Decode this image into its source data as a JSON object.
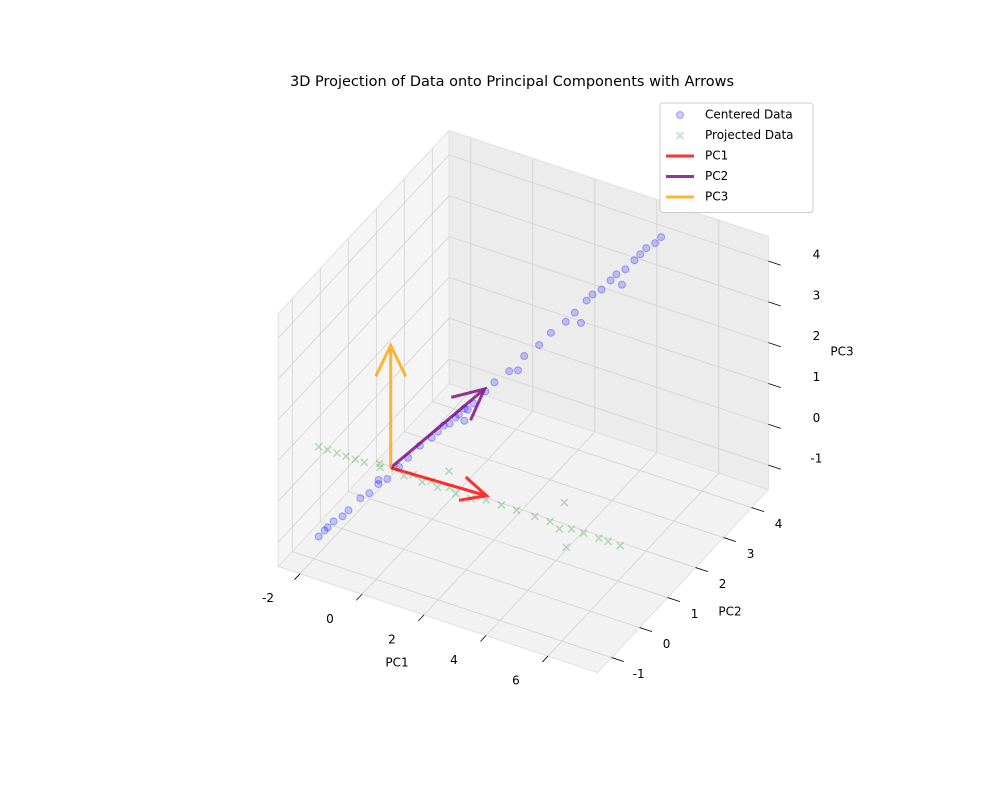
{
  "chart_data": {
    "type": "scatter3d",
    "title": "3D Projection of Data onto Principal Components with Arrows",
    "xlabel": "PC1",
    "ylabel": "PC2",
    "zlabel": "PC3",
    "xlim": [
      -2.7,
      7.6
    ],
    "ylim": [
      -1.5,
      4.6
    ],
    "zlim": [
      -1.6,
      4.6
    ],
    "xticks": [
      -2,
      0,
      2,
      4,
      6
    ],
    "yticks": [
      -1,
      0,
      1,
      2,
      3,
      4
    ],
    "zticks": [
      -1,
      0,
      1,
      2,
      3,
      4
    ],
    "grid": true,
    "legend": "upper right",
    "series": [
      {
        "name": "Centered Data",
        "color": "blue",
        "marker": "o",
        "alpha": 0.2,
        "x": [
          -2.3,
          -2.2,
          -2.1,
          -2.0,
          -1.8,
          -1.7,
          -1.5,
          -1.3,
          -1.1,
          -0.9,
          -0.7,
          -0.5,
          -0.3,
          -0.1,
          0.1,
          0.2,
          0.3,
          0.4,
          0.5,
          0.6,
          0.7,
          0.8,
          1.0,
          1.2,
          1.5,
          1.8,
          2.1,
          2.3,
          2.6,
          2.8,
          3.0,
          3.1,
          3.3,
          3.5,
          3.6,
          3.8,
          4.0,
          4.1,
          4.2,
          4.4,
          4.5,
          3.0,
          3.6,
          0.5,
          -1.0,
          1.6
        ],
        "y": [
          -0.5,
          -0.4,
          -0.4,
          -0.3,
          -0.2,
          -0.1,
          0.1,
          0.2,
          0.3,
          0.4,
          0.6,
          0.7,
          0.9,
          1.1,
          1.1,
          1.2,
          1.3,
          1.4,
          1.4,
          1.5,
          1.5,
          1.6,
          1.8,
          1.9,
          2.1,
          2.3,
          2.5,
          2.7,
          2.9,
          3.0,
          3.2,
          3.3,
          3.4,
          3.5,
          3.6,
          3.7,
          3.8,
          3.9,
          4.0,
          4.1,
          4.2,
          3.0,
          3.8,
          1.6,
          0.2,
          2.3
        ],
        "z": [
          -1.5,
          -1.4,
          -1.3,
          -1.2,
          -1.1,
          -1.0,
          -0.8,
          -0.7,
          -0.5,
          -0.4,
          -0.2,
          0.0,
          0.2,
          0.3,
          0.5,
          0.6,
          0.6,
          0.7,
          0.8,
          0.9,
          0.9,
          1.0,
          1.2,
          1.4,
          1.6,
          1.9,
          2.1,
          2.3,
          2.5,
          2.7,
          2.9,
          3.0,
          3.1,
          3.3,
          3.4,
          3.5,
          3.7,
          3.8,
          3.9,
          4.0,
          4.1,
          2.5,
          3.0,
          0.5,
          -0.3,
          1.5
        ]
      },
      {
        "name": "Projected Data",
        "color": "green",
        "marker": "x",
        "alpha": 0.2,
        "x": [
          -2.3,
          -2.1,
          -1.8,
          -1.6,
          -1.3,
          -1.1,
          -0.7,
          -0.3,
          0.0,
          0.2,
          0.5,
          0.7,
          0.9,
          1.2,
          1.4,
          1.8,
          2.2,
          2.6,
          3.0,
          3.5,
          3.9,
          4.2,
          4.5,
          4.8,
          5.2,
          5.5,
          5.8,
          4.0,
          4.6,
          1.0,
          -0.5
        ],
        "y": [
          -0.5,
          -0.4,
          -0.4,
          -0.3,
          -0.3,
          -0.2,
          -0.1,
          0.0,
          0.0,
          0.1,
          0.1,
          0.2,
          0.2,
          0.3,
          0.3,
          0.4,
          0.5,
          0.6,
          0.7,
          0.8,
          0.9,
          0.9,
          1.0,
          1.1,
          1.2,
          1.2,
          1.3,
          1.3,
          0.7,
          0.5,
          -0.3
        ],
        "z": [
          0.7,
          0.6,
          0.6,
          0.5,
          0.5,
          0.4,
          0.4,
          0.3,
          0.2,
          0.2,
          0.1,
          0.1,
          0.0,
          0.0,
          -0.1,
          -0.2,
          -0.2,
          -0.3,
          -0.4,
          -0.5,
          -0.6,
          -0.7,
          -0.7,
          -0.8,
          -0.9,
          -0.9,
          -1.0,
          -0.4,
          -0.9,
          0.2,
          0.5
        ]
      }
    ],
    "arrows": [
      {
        "name": "PC1",
        "color": "red",
        "alpha": 0.8,
        "origin": [
          -0.7,
          0.3,
          0.0
        ],
        "vector": [
          3.0,
          0.1,
          0.0
        ]
      },
      {
        "name": "PC2",
        "color": "purple",
        "alpha": 0.8,
        "origin": [
          -0.7,
          0.3,
          0.0
        ],
        "vector": [
          0.5,
          2.8,
          0.0
        ]
      },
      {
        "name": "PC3",
        "color": "orange",
        "alpha": 0.8,
        "origin": [
          -0.7,
          0.3,
          0.0
        ],
        "vector": [
          0.0,
          0.0,
          3.0
        ]
      }
    ]
  }
}
